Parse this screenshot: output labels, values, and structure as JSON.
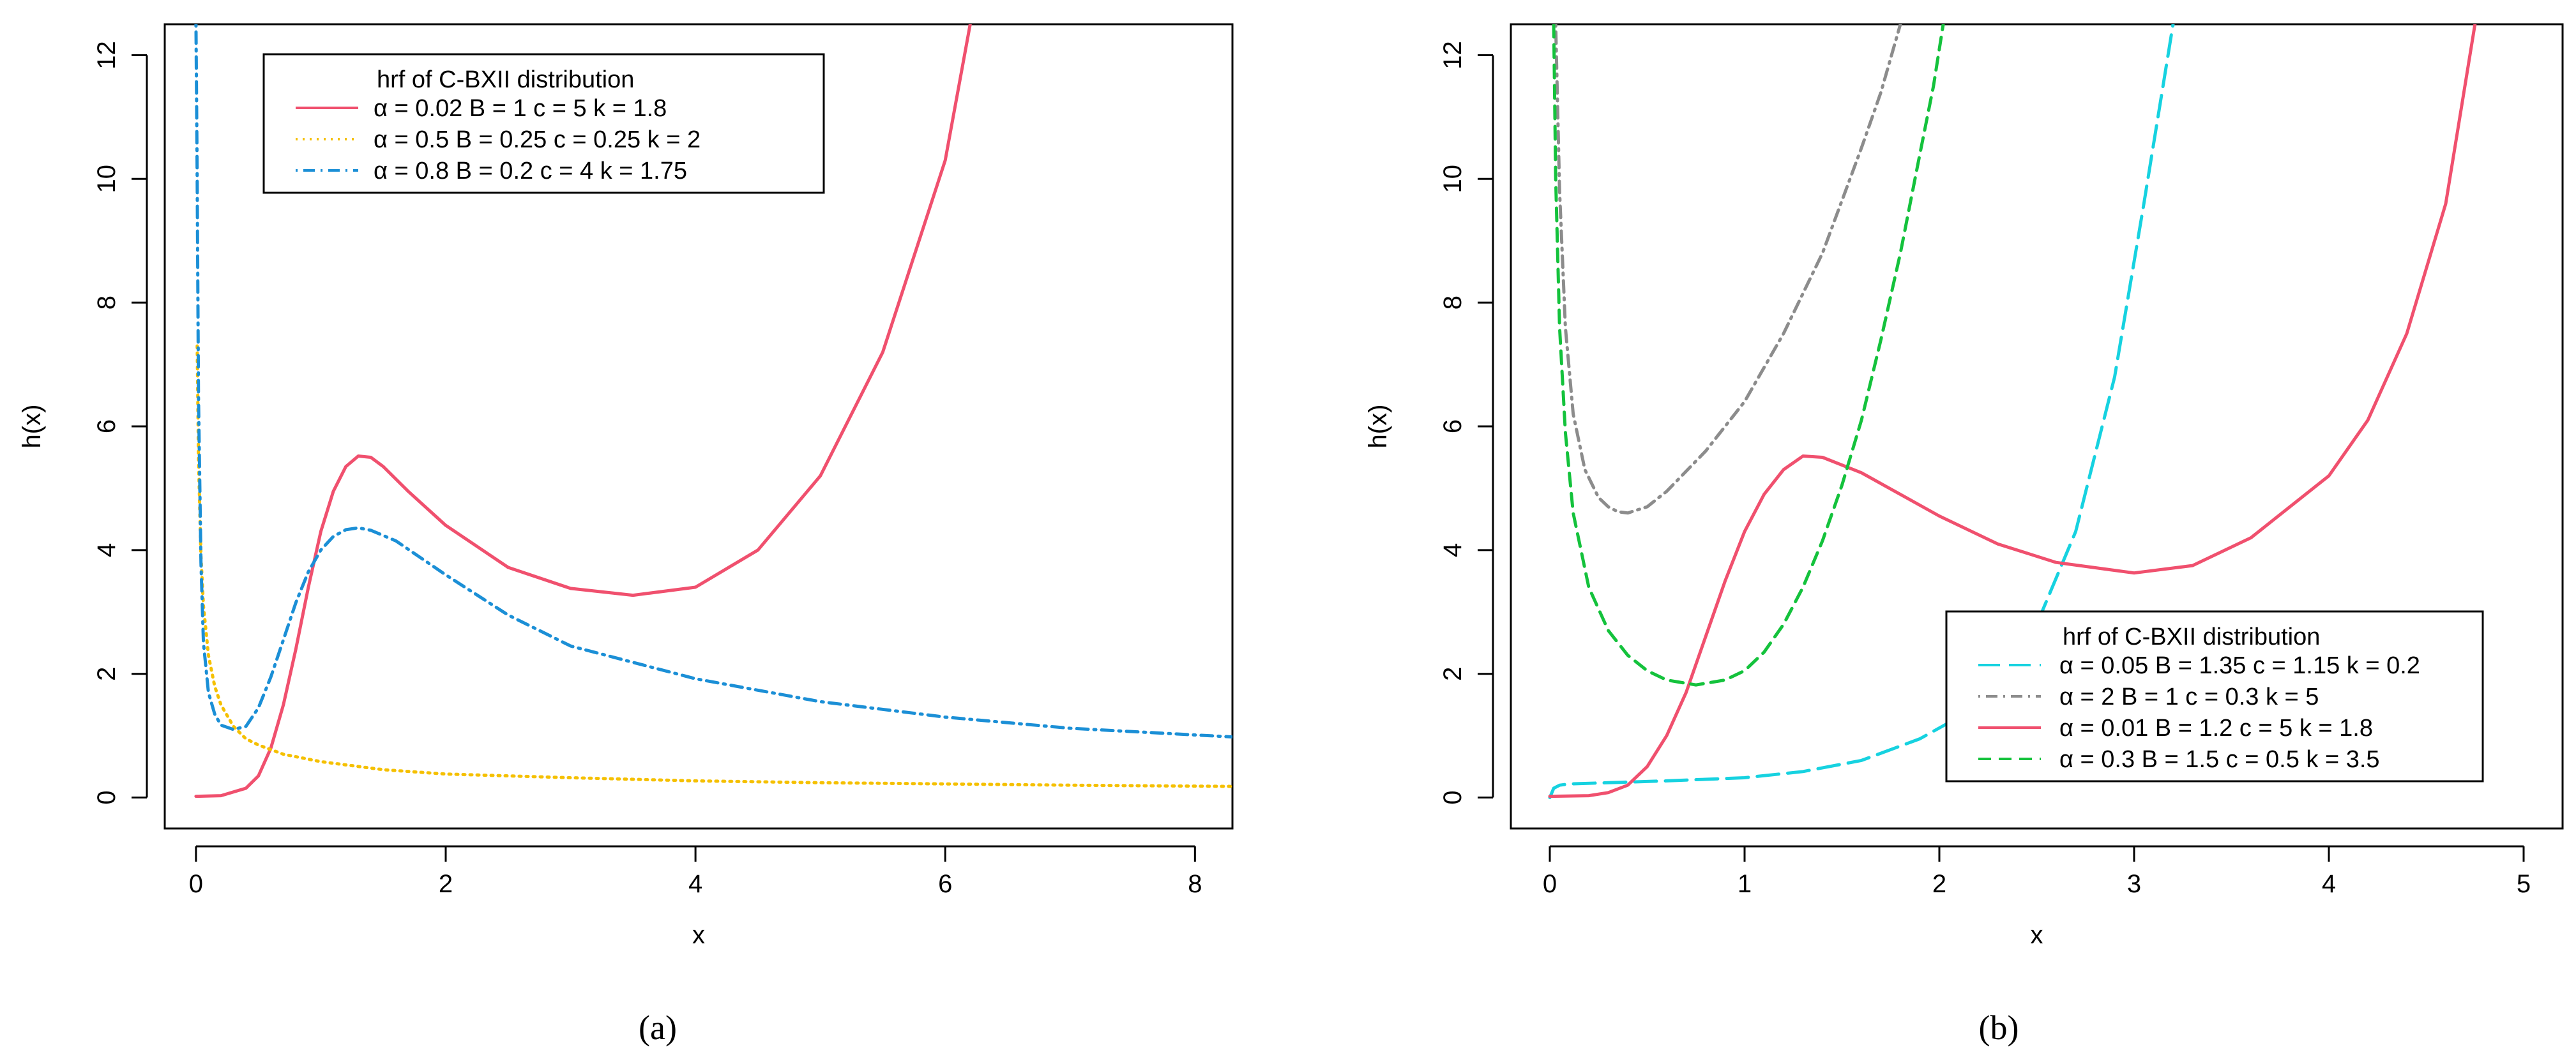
{
  "colors": {
    "red": "#f0506e",
    "yellow": "#f5c000",
    "blue": "#1b8fd6",
    "gray": "#8c8c8c",
    "cyan": "#16d2e0",
    "green": "#14c23c",
    "axis": "#000000"
  },
  "chart_data": [
    {
      "type": "line",
      "caption": "(a)",
      "xlabel": "x",
      "ylabel": "h(x)",
      "xlim": [
        -0.25,
        8.3
      ],
      "ylim": [
        -0.5,
        12.5
      ],
      "xticks": [
        0,
        2,
        4,
        6,
        8
      ],
      "yticks": [
        0,
        2,
        4,
        6,
        8,
        10,
        12
      ],
      "grid": false,
      "legend": {
        "title": "hrf of C-BXII distribution",
        "placement": "top-left",
        "entries": [
          "α = 0.02  B = 1  c = 5  k = 1.8",
          "α = 0.5  B = 0.25  c = 0.25  k = 2",
          "α = 0.8  B = 0.2  c = 4  k = 1.75"
        ]
      },
      "series": [
        {
          "color": "red",
          "dash": "solid",
          "x": [
            0,
            0.2,
            0.4,
            0.5,
            0.6,
            0.7,
            0.8,
            0.9,
            1.0,
            1.1,
            1.2,
            1.3,
            1.4,
            1.5,
            1.7,
            2.0,
            2.5,
            3.0,
            3.5,
            4.0,
            4.5,
            5.0,
            5.5,
            6.0,
            6.2
          ],
          "y": [
            0.02,
            0.03,
            0.15,
            0.35,
            0.8,
            1.5,
            2.4,
            3.4,
            4.3,
            4.95,
            5.35,
            5.52,
            5.5,
            5.35,
            4.95,
            4.4,
            3.72,
            3.38,
            3.27,
            3.4,
            4.0,
            5.2,
            7.2,
            10.3,
            12.5
          ]
        },
        {
          "color": "yellow",
          "dash": "dotted",
          "x": [
            0.01,
            0.02,
            0.04,
            0.06,
            0.1,
            0.15,
            0.2,
            0.3,
            0.4,
            0.5,
            0.7,
            1.0,
            1.5,
            2.0,
            3.0,
            4.0,
            5.0,
            6.0,
            7.0,
            8.3
          ],
          "y": [
            7.3,
            5.5,
            3.9,
            3.1,
            2.3,
            1.8,
            1.5,
            1.15,
            0.95,
            0.85,
            0.7,
            0.58,
            0.45,
            0.38,
            0.32,
            0.27,
            0.24,
            0.22,
            0.2,
            0.18
          ]
        },
        {
          "color": "blue",
          "dash": "dotdash",
          "x": [
            0.0,
            0.01,
            0.02,
            0.04,
            0.06,
            0.1,
            0.15,
            0.2,
            0.3,
            0.4,
            0.5,
            0.6,
            0.7,
            0.8,
            0.9,
            1.0,
            1.1,
            1.2,
            1.3,
            1.4,
            1.6,
            2.0,
            2.5,
            3.0,
            4.0,
            5.0,
            6.0,
            7.0,
            8.3
          ],
          "y": [
            12.5,
            10.0,
            6.5,
            3.8,
            2.5,
            1.7,
            1.35,
            1.17,
            1.1,
            1.15,
            1.45,
            1.95,
            2.55,
            3.15,
            3.65,
            4.0,
            4.22,
            4.33,
            4.36,
            4.32,
            4.15,
            3.6,
            2.95,
            2.45,
            1.92,
            1.55,
            1.3,
            1.12,
            0.98
          ]
        }
      ]
    },
    {
      "type": "line",
      "caption": "(b)",
      "xlabel": "x",
      "ylabel": "h(x)",
      "xlim": [
        -0.2,
        5.2
      ],
      "ylim": [
        -0.5,
        12.5
      ],
      "xticks": [
        0,
        1,
        2,
        3,
        4,
        5
      ],
      "yticks": [
        0,
        2,
        4,
        6,
        8,
        10,
        12
      ],
      "grid": false,
      "legend": {
        "title": "hrf of C-BXII distribution",
        "placement": "bottom-right",
        "entries": [
          "α = 0.05  B = 1.35  c = 1.15  k = 0.2",
          "α = 2  B = 1  c = 0.3  k = 5",
          "α = 0.01  B = 1.2  c = 5  k = 1.8",
          "α = 0.3  B = 1.5  c = 0.5  k = 3.5"
        ]
      },
      "series": [
        {
          "color": "cyan",
          "dash": "longdash",
          "x": [
            0.0,
            0.02,
            0.05,
            0.1,
            0.3,
            0.6,
            1.0,
            1.3,
            1.6,
            1.9,
            2.1,
            2.3,
            2.5,
            2.7,
            2.9,
            3.05,
            3.2
          ],
          "y": [
            0.0,
            0.15,
            0.2,
            0.22,
            0.24,
            0.27,
            0.32,
            0.42,
            0.6,
            0.95,
            1.3,
            1.9,
            2.8,
            4.3,
            6.8,
            9.6,
            12.5
          ]
        },
        {
          "color": "gray",
          "dash": "dotdash",
          "x": [
            0.03,
            0.05,
            0.08,
            0.12,
            0.18,
            0.25,
            0.3,
            0.35,
            0.4,
            0.5,
            0.6,
            0.8,
            1.0,
            1.2,
            1.4,
            1.6,
            1.7,
            1.8
          ],
          "y": [
            12.5,
            9.8,
            7.6,
            6.2,
            5.3,
            4.85,
            4.7,
            4.62,
            4.6,
            4.7,
            4.95,
            5.6,
            6.4,
            7.5,
            8.8,
            10.5,
            11.4,
            12.5
          ]
        },
        {
          "color": "red",
          "dash": "solid",
          "x": [
            0,
            0.2,
            0.3,
            0.4,
            0.5,
            0.6,
            0.7,
            0.8,
            0.9,
            1.0,
            1.1,
            1.2,
            1.3,
            1.4,
            1.6,
            1.8,
            2.0,
            2.3,
            2.6,
            3.0,
            3.3,
            3.6,
            4.0,
            4.2,
            4.4,
            4.6,
            4.75
          ],
          "y": [
            0.02,
            0.03,
            0.08,
            0.2,
            0.5,
            1.0,
            1.7,
            2.6,
            3.5,
            4.3,
            4.9,
            5.3,
            5.52,
            5.5,
            5.25,
            4.9,
            4.55,
            4.1,
            3.8,
            3.63,
            3.75,
            4.2,
            5.2,
            6.1,
            7.5,
            9.6,
            12.5
          ]
        },
        {
          "color": "green",
          "dash": "dashed",
          "x": [
            0.02,
            0.03,
            0.05,
            0.08,
            0.12,
            0.2,
            0.3,
            0.4,
            0.5,
            0.6,
            0.75,
            0.9,
            1.0,
            1.1,
            1.2,
            1.3,
            1.4,
            1.5,
            1.6,
            1.7,
            1.8,
            1.9,
            1.97,
            2.02
          ],
          "y": [
            12.5,
            10.0,
            7.6,
            5.9,
            4.6,
            3.4,
            2.7,
            2.3,
            2.05,
            1.9,
            1.82,
            1.9,
            2.05,
            2.35,
            2.8,
            3.4,
            4.15,
            5.05,
            6.1,
            7.4,
            8.8,
            10.4,
            11.5,
            12.5
          ]
        }
      ]
    }
  ]
}
